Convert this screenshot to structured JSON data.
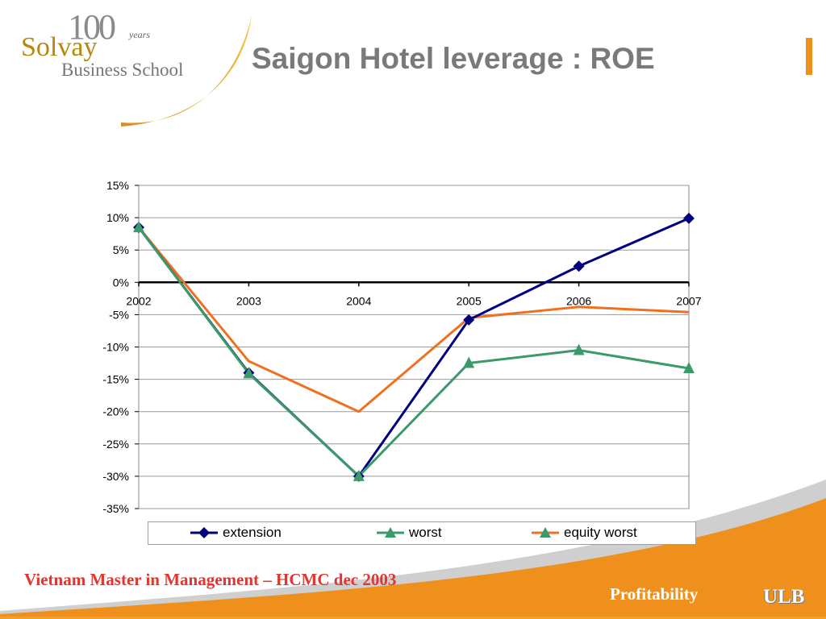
{
  "logo": {
    "anniversary": "100",
    "years": "years",
    "line1": "Solvay",
    "line2": "Business School"
  },
  "slide": {
    "title": "Saigon Hotel leverage : ROE"
  },
  "footer": {
    "left_text": "Vietnam Master in Management – HCMC dec 2003",
    "right_text": "Profitability",
    "ulb": "ULB"
  },
  "colors": {
    "title": "#7a7a7a",
    "accent_orange": "#f0901c",
    "footer_red": "#e3342f"
  },
  "chart_data": {
    "type": "line",
    "title": "",
    "xlabel": "",
    "ylabel": "",
    "categories": [
      "2002",
      "2003",
      "2004",
      "2005",
      "2006",
      "2007"
    ],
    "ylim": [
      -0.35,
      0.15
    ],
    "yticks": [
      0.15,
      0.1,
      0.05,
      0.0,
      -0.05,
      -0.1,
      -0.15,
      -0.2,
      -0.25,
      -0.3,
      -0.35
    ],
    "ytick_labels": [
      "15%",
      "10%",
      "5%",
      "0%",
      "-5%",
      "-10%",
      "-15%",
      "-20%",
      "-25%",
      "-30%",
      "-35%"
    ],
    "grid": true,
    "legend_position": "bottom",
    "series": [
      {
        "name": "extension",
        "color": "#000080",
        "marker": "diamond",
        "values": [
          0.085,
          -0.14,
          -0.3,
          -0.058,
          0.025,
          0.099
        ]
      },
      {
        "name": "worst",
        "color": "#3a9a6a",
        "marker": "triangle",
        "values": [
          0.085,
          -0.141,
          -0.3,
          -0.125,
          -0.105,
          -0.133
        ]
      },
      {
        "name": "equity worst",
        "color": "#f07020",
        "marker": "none",
        "values": [
          0.085,
          -0.122,
          -0.2,
          -0.055,
          -0.038,
          -0.046
        ]
      }
    ]
  }
}
